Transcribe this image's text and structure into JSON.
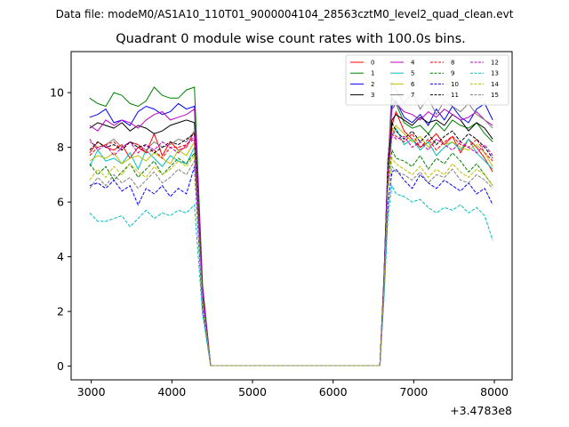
{
  "figure": {
    "suptitle": "Data file: modeM0/AS1A10_110T01_9000004104_28563cztM0_level2_quad_clean.evt"
  },
  "chart_data": {
    "type": "line",
    "title": "Quadrant 0 module wise count rates with 100.0s bins.",
    "xlabel": "",
    "ylabel": "",
    "x_offset_label": "+3.4783e8",
    "xlim": [
      2750,
      8220
    ],
    "ylim": [
      -0.5,
      11.5
    ],
    "xticks": [
      3000,
      4000,
      5000,
      6000,
      7000,
      8000
    ],
    "yticks": [
      0,
      2,
      4,
      6,
      8,
      10
    ],
    "grid": false,
    "legend_position": "top-right",
    "x": [
      2980,
      3080,
      3180,
      3280,
      3380,
      3480,
      3580,
      3680,
      3780,
      3880,
      3980,
      4080,
      4180,
      4280,
      4380,
      4480,
      4580,
      4680,
      4780,
      4880,
      4980,
      5080,
      5180,
      5280,
      5380,
      5480,
      5580,
      5680,
      5780,
      5880,
      5980,
      6080,
      6180,
      6280,
      6380,
      6480,
      6580,
      6630,
      6680,
      6730,
      6780,
      6880,
      6980,
      7080,
      7180,
      7280,
      7380,
      7480,
      7580,
      7680,
      7780,
      7880,
      7980
    ],
    "series": [
      {
        "name": "0",
        "color": "#ff0000",
        "dash": "solid",
        "values": [
          7.8,
          8.2,
          8.0,
          7.9,
          8.1,
          7.6,
          8.0,
          7.8,
          8.5,
          7.7,
          8.2,
          7.9,
          8.0,
          8.6,
          2.5,
          0.02,
          0.02,
          0.02,
          0.02,
          0.02,
          0.02,
          0.02,
          0.02,
          0.02,
          0.02,
          0.02,
          0.02,
          0.02,
          0.02,
          0.02,
          0.02,
          0.02,
          0.02,
          0.02,
          0.02,
          0.02,
          0.02,
          3.0,
          7.0,
          8.8,
          9.3,
          8.6,
          8.3,
          8.0,
          8.2,
          8.5,
          8.1,
          8.4,
          7.8,
          8.3,
          8.0,
          7.6,
          7.1
        ]
      },
      {
        "name": "1",
        "color": "#008000",
        "dash": "solid",
        "values": [
          9.8,
          9.6,
          9.5,
          10.0,
          9.9,
          9.6,
          9.5,
          9.7,
          10.2,
          9.9,
          9.8,
          9.8,
          10.1,
          10.2,
          3.0,
          0.02,
          0.02,
          0.02,
          0.02,
          0.02,
          0.02,
          0.02,
          0.02,
          0.02,
          0.02,
          0.02,
          0.02,
          0.02,
          0.02,
          0.02,
          0.02,
          0.02,
          0.02,
          0.02,
          0.02,
          0.02,
          0.02,
          3.2,
          7.5,
          9.8,
          9.6,
          8.9,
          8.7,
          8.8,
          8.5,
          8.9,
          8.6,
          9.0,
          8.8,
          8.7,
          8.9,
          8.5,
          8.2
        ]
      },
      {
        "name": "2",
        "color": "#0000ff",
        "dash": "solid",
        "values": [
          9.1,
          9.2,
          9.4,
          8.9,
          9.0,
          8.8,
          9.3,
          9.5,
          9.4,
          9.2,
          9.3,
          9.6,
          9.4,
          9.5,
          2.8,
          0.02,
          0.02,
          0.02,
          0.02,
          0.02,
          0.02,
          0.02,
          0.02,
          0.02,
          0.02,
          0.02,
          0.02,
          0.02,
          0.02,
          0.02,
          0.02,
          0.02,
          0.02,
          0.02,
          0.02,
          0.02,
          0.02,
          3.2,
          7.6,
          9.5,
          9.7,
          9.1,
          8.9,
          9.2,
          8.8,
          9.4,
          9.0,
          9.5,
          9.1,
          8.9,
          9.4,
          9.6,
          9.0
        ]
      },
      {
        "name": "3",
        "color": "#000000",
        "dash": "solid",
        "values": [
          8.7,
          8.9,
          8.8,
          8.7,
          8.9,
          8.6,
          8.8,
          8.7,
          8.5,
          8.6,
          8.8,
          8.9,
          9.0,
          8.9,
          2.7,
          0.02,
          0.02,
          0.02,
          0.02,
          0.02,
          0.02,
          0.02,
          0.02,
          0.02,
          0.02,
          0.02,
          0.02,
          0.02,
          0.02,
          0.02,
          0.02,
          0.02,
          0.02,
          0.02,
          0.02,
          0.02,
          0.02,
          3.1,
          7.4,
          9.0,
          9.2,
          9.0,
          8.8,
          9.1,
          8.9,
          9.0,
          8.8,
          9.2,
          9.0,
          8.6,
          8.9,
          8.7,
          8.3
        ]
      },
      {
        "name": "4",
        "color": "#bf00bf",
        "dash": "solid",
        "values": [
          8.8,
          8.6,
          9.0,
          8.8,
          9.0,
          8.9,
          8.7,
          9.0,
          9.2,
          9.3,
          9.0,
          9.1,
          9.2,
          9.4,
          2.9,
          0.02,
          0.02,
          0.02,
          0.02,
          0.02,
          0.02,
          0.02,
          0.02,
          0.02,
          0.02,
          0.02,
          0.02,
          0.02,
          0.02,
          0.02,
          0.02,
          0.02,
          0.02,
          0.02,
          0.02,
          0.02,
          0.02,
          3.1,
          7.6,
          9.4,
          9.6,
          9.3,
          9.2,
          9.0,
          9.3,
          9.1,
          9.4,
          9.2,
          9.0,
          9.1,
          9.3,
          9.0,
          8.8
        ]
      },
      {
        "name": "5",
        "color": "#00bfbf",
        "dash": "solid",
        "values": [
          7.3,
          7.9,
          7.5,
          7.6,
          7.4,
          7.8,
          7.2,
          7.9,
          7.6,
          7.3,
          7.7,
          7.5,
          7.4,
          8.0,
          2.5,
          0.02,
          0.02,
          0.02,
          0.02,
          0.02,
          0.02,
          0.02,
          0.02,
          0.02,
          0.02,
          0.02,
          0.02,
          0.02,
          0.02,
          0.02,
          0.02,
          0.02,
          0.02,
          0.02,
          0.02,
          0.02,
          0.02,
          2.9,
          6.9,
          8.4,
          8.7,
          8.1,
          8.3,
          7.9,
          8.2,
          7.7,
          8.0,
          8.2,
          7.9,
          8.3,
          7.8,
          7.5,
          7.2
        ]
      },
      {
        "name": "6",
        "color": "#bfbf00",
        "dash": "solid",
        "values": [
          7.5,
          7.7,
          7.6,
          7.8,
          7.4,
          7.6,
          7.7,
          7.5,
          7.8,
          7.6,
          7.4,
          7.9,
          7.7,
          8.2,
          2.5,
          0.02,
          0.02,
          0.02,
          0.02,
          0.02,
          0.02,
          0.02,
          0.02,
          0.02,
          0.02,
          0.02,
          0.02,
          0.02,
          0.02,
          0.02,
          0.02,
          0.02,
          0.02,
          0.02,
          0.02,
          0.02,
          0.02,
          3.0,
          6.8,
          8.6,
          8.8,
          8.5,
          8.2,
          8.4,
          8.0,
          8.3,
          8.1,
          8.2,
          8.0,
          7.9,
          8.1,
          7.8,
          7.3
        ]
      },
      {
        "name": "7",
        "color": "#7f7f7f",
        "dash": "solid",
        "values": [
          8.2,
          8.0,
          8.1,
          8.3,
          8.0,
          8.2,
          8.1,
          7.9,
          8.2,
          8.0,
          8.1,
          8.3,
          8.2,
          8.6,
          2.6,
          0.02,
          0.02,
          0.02,
          0.02,
          0.02,
          0.02,
          0.02,
          0.02,
          0.02,
          0.02,
          0.02,
          0.02,
          0.02,
          0.02,
          0.02,
          0.02,
          0.02,
          0.02,
          0.02,
          0.02,
          0.02,
          0.02,
          3.1,
          7.4,
          10.4,
          10.1,
          9.6,
          10.0,
          9.4,
          9.8,
          9.2,
          9.7,
          9.5,
          9.3,
          9.6,
          9.2,
          9.0,
          8.7
        ]
      },
      {
        "name": "8",
        "color": "#ff0000",
        "dash": "dashed",
        "values": [
          7.7,
          8.0,
          8.1,
          8.2,
          7.9,
          8.2,
          8.1,
          7.8,
          7.9,
          7.6,
          8.0,
          8.0,
          8.1,
          8.3,
          2.5,
          0.02,
          0.02,
          0.02,
          0.02,
          0.02,
          0.02,
          0.02,
          0.02,
          0.02,
          0.02,
          0.02,
          0.02,
          0.02,
          0.02,
          0.02,
          0.02,
          0.02,
          0.02,
          0.02,
          0.02,
          0.02,
          0.02,
          2.9,
          7.0,
          8.7,
          8.4,
          8.2,
          8.5,
          8.0,
          8.3,
          7.9,
          8.2,
          8.4,
          8.1,
          8.0,
          8.3,
          7.8,
          7.5
        ]
      },
      {
        "name": "9",
        "color": "#008000",
        "dash": "dashed",
        "values": [
          7.4,
          7.0,
          7.3,
          6.8,
          7.1,
          7.4,
          6.9,
          7.2,
          7.5,
          7.0,
          7.3,
          7.6,
          7.4,
          7.8,
          2.4,
          0.02,
          0.02,
          0.02,
          0.02,
          0.02,
          0.02,
          0.02,
          0.02,
          0.02,
          0.02,
          0.02,
          0.02,
          0.02,
          0.02,
          0.02,
          0.02,
          0.02,
          0.02,
          0.02,
          0.02,
          0.02,
          0.02,
          2.8,
          6.7,
          7.9,
          7.6,
          7.5,
          7.3,
          7.7,
          7.2,
          7.6,
          7.4,
          7.8,
          7.5,
          7.1,
          7.4,
          7.0,
          6.6
        ]
      },
      {
        "name": "10",
        "color": "#0000ff",
        "dash": "dashed",
        "values": [
          6.6,
          6.7,
          6.5,
          6.8,
          6.4,
          6.6,
          5.9,
          6.5,
          6.3,
          6.6,
          6.2,
          6.5,
          6.3,
          7.3,
          2.1,
          0.02,
          0.02,
          0.02,
          0.02,
          0.02,
          0.02,
          0.02,
          0.02,
          0.02,
          0.02,
          0.02,
          0.02,
          0.02,
          0.02,
          0.02,
          0.02,
          0.02,
          0.02,
          0.02,
          0.02,
          0.02,
          0.02,
          2.6,
          5.9,
          7.1,
          7.2,
          6.8,
          6.5,
          7.0,
          6.7,
          6.5,
          6.8,
          6.6,
          6.4,
          6.7,
          6.3,
          6.5,
          5.9
        ]
      },
      {
        "name": "11",
        "color": "#000000",
        "dash": "dashed",
        "values": [
          7.9,
          8.2,
          8.0,
          8.1,
          7.9,
          8.2,
          8.0,
          8.1,
          7.8,
          8.0,
          8.2,
          8.1,
          8.3,
          8.5,
          2.6,
          0.02,
          0.02,
          0.02,
          0.02,
          0.02,
          0.02,
          0.02,
          0.02,
          0.02,
          0.02,
          0.02,
          0.02,
          0.02,
          0.02,
          0.02,
          0.02,
          0.02,
          0.02,
          0.02,
          0.02,
          0.02,
          0.02,
          3.0,
          7.3,
          8.9,
          8.6,
          8.3,
          8.6,
          8.2,
          8.5,
          8.1,
          8.4,
          8.6,
          8.2,
          8.5,
          8.3,
          8.0,
          7.6
        ]
      },
      {
        "name": "12",
        "color": "#bf00bf",
        "dash": "dashed",
        "values": [
          8.3,
          7.9,
          8.1,
          7.7,
          8.0,
          8.2,
          7.8,
          8.1,
          7.9,
          8.2,
          8.0,
          7.8,
          8.1,
          8.4,
          2.6,
          0.02,
          0.02,
          0.02,
          0.02,
          0.02,
          0.02,
          0.02,
          0.02,
          0.02,
          0.02,
          0.02,
          0.02,
          0.02,
          0.02,
          0.02,
          0.02,
          0.02,
          0.02,
          0.02,
          0.02,
          0.02,
          0.02,
          3.0,
          7.1,
          8.5,
          8.3,
          8.4,
          8.0,
          8.2,
          7.9,
          8.3,
          8.1,
          7.9,
          8.2,
          8.0,
          7.8,
          8.1,
          7.7
        ]
      },
      {
        "name": "13",
        "color": "#00bfbf",
        "dash": "dashed",
        "values": [
          5.6,
          5.3,
          5.3,
          5.4,
          5.5,
          5.1,
          5.4,
          5.7,
          5.4,
          5.6,
          5.5,
          5.7,
          5.6,
          5.9,
          1.9,
          0.02,
          0.02,
          0.02,
          0.02,
          0.02,
          0.02,
          0.02,
          0.02,
          0.02,
          0.02,
          0.02,
          0.02,
          0.02,
          0.02,
          0.02,
          0.02,
          0.02,
          0.02,
          0.02,
          0.02,
          0.02,
          0.02,
          2.4,
          5.5,
          6.6,
          6.3,
          6.2,
          6.0,
          6.1,
          5.8,
          5.6,
          5.8,
          5.7,
          5.9,
          5.6,
          5.8,
          5.5,
          4.6
        ]
      },
      {
        "name": "14",
        "color": "#bfbf00",
        "dash": "dashed",
        "values": [
          6.8,
          7.2,
          6.9,
          7.3,
          7.0,
          7.4,
          7.1,
          6.9,
          7.3,
          7.0,
          7.2,
          7.5,
          7.3,
          7.7,
          2.4,
          0.02,
          0.02,
          0.02,
          0.02,
          0.02,
          0.02,
          0.02,
          0.02,
          0.02,
          0.02,
          0.02,
          0.02,
          0.02,
          0.02,
          0.02,
          0.02,
          0.02,
          0.02,
          0.02,
          0.02,
          0.02,
          0.02,
          2.8,
          6.6,
          7.6,
          7.4,
          7.2,
          7.0,
          7.3,
          6.9,
          7.2,
          7.0,
          7.4,
          7.1,
          6.9,
          7.2,
          7.0,
          6.6
        ]
      },
      {
        "name": "15",
        "color": "#7f7f7f",
        "dash": "dashed",
        "values": [
          6.5,
          6.9,
          6.6,
          7.0,
          6.7,
          6.9,
          6.5,
          6.8,
          7.1,
          6.7,
          6.9,
          7.2,
          7.0,
          7.5,
          2.3,
          0.02,
          0.02,
          0.02,
          0.02,
          0.02,
          0.02,
          0.02,
          0.02,
          0.02,
          0.02,
          0.02,
          0.02,
          0.02,
          0.02,
          0.02,
          0.02,
          0.02,
          0.02,
          0.02,
          0.02,
          0.02,
          0.02,
          2.7,
          6.5,
          7.3,
          7.1,
          7.0,
          6.8,
          7.1,
          6.7,
          7.0,
          6.9,
          7.2,
          6.8,
          6.7,
          7.0,
          6.8,
          6.5
        ]
      }
    ]
  }
}
